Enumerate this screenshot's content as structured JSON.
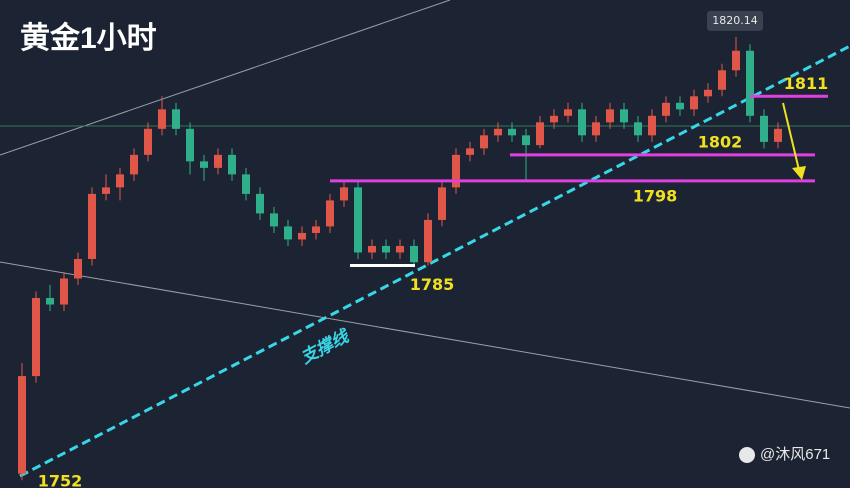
{
  "chart_data": {
    "type": "candlestick",
    "title": "黄金1小时",
    "ylim": [
      1750.8,
      1825.8
    ],
    "up_color": "#e0574a",
    "down_color": "#2fb08a",
    "candles": [
      [
        1753,
        1770,
        1752,
        1768
      ],
      [
        1768,
        1781,
        1767,
        1780
      ],
      [
        1780,
        1782,
        1778,
        1779
      ],
      [
        1779,
        1784,
        1778,
        1783
      ],
      [
        1783,
        1787,
        1782,
        1786
      ],
      [
        1786,
        1797,
        1785,
        1796
      ],
      [
        1796,
        1799,
        1795,
        1797
      ],
      [
        1797,
        1800,
        1795,
        1799
      ],
      [
        1799,
        1803,
        1798,
        1802
      ],
      [
        1802,
        1807,
        1801,
        1806
      ],
      [
        1806,
        1811,
        1805,
        1809
      ],
      [
        1809,
        1810,
        1805,
        1806
      ],
      [
        1806,
        1807,
        1799,
        1801
      ],
      [
        1801,
        1802,
        1798,
        1800
      ],
      [
        1800,
        1803,
        1799,
        1802
      ],
      [
        1802,
        1803,
        1798,
        1799
      ],
      [
        1799,
        1800,
        1795,
        1796
      ],
      [
        1796,
        1797,
        1792,
        1793
      ],
      [
        1793,
        1794,
        1790,
        1791
      ],
      [
        1791,
        1792,
        1788,
        1789
      ],
      [
        1789,
        1791,
        1788,
        1790
      ],
      [
        1790,
        1792,
        1789,
        1791
      ],
      [
        1791,
        1796,
        1790,
        1795
      ],
      [
        1795,
        1798,
        1794,
        1797
      ],
      [
        1797,
        1798,
        1786,
        1787
      ],
      [
        1787,
        1789,
        1786,
        1788
      ],
      [
        1788,
        1789,
        1786,
        1787
      ],
      [
        1787,
        1789,
        1786,
        1788
      ],
      [
        1788,
        1789,
        1785,
        1785.5
      ],
      [
        1785.5,
        1793,
        1785,
        1792
      ],
      [
        1792,
        1798,
        1791,
        1797
      ],
      [
        1797,
        1803,
        1796,
        1802
      ],
      [
        1802,
        1804,
        1801,
        1803
      ],
      [
        1803,
        1806,
        1802,
        1805
      ],
      [
        1805,
        1807,
        1804,
        1806
      ],
      [
        1806,
        1807,
        1804,
        1805
      ],
      [
        1805,
        1806,
        1798,
        1803.5
      ],
      [
        1803.5,
        1808,
        1803,
        1807
      ],
      [
        1807,
        1809,
        1806,
        1808
      ],
      [
        1808,
        1810,
        1807,
        1809
      ],
      [
        1809,
        1810,
        1804,
        1805
      ],
      [
        1805,
        1808,
        1804,
        1807
      ],
      [
        1807,
        1810,
        1806,
        1809
      ],
      [
        1809,
        1810,
        1806,
        1807
      ],
      [
        1807,
        1808,
        1804,
        1805
      ],
      [
        1805,
        1809,
        1804,
        1808
      ],
      [
        1808,
        1811,
        1807,
        1810
      ],
      [
        1810,
        1811,
        1808,
        1809
      ],
      [
        1809,
        1812,
        1808,
        1811
      ],
      [
        1811,
        1813,
        1810,
        1812
      ],
      [
        1812,
        1816,
        1811,
        1815
      ],
      [
        1815,
        1820.14,
        1814,
        1818
      ],
      [
        1818,
        1819,
        1807,
        1808
      ],
      [
        1808,
        1809,
        1803,
        1804
      ],
      [
        1804,
        1807,
        1803,
        1806
      ]
    ],
    "levels": [
      {
        "value": 1811,
        "color": "#e040e0"
      },
      {
        "value": 1802,
        "color": "#e040e0"
      },
      {
        "value": 1798,
        "color": "#e040e0"
      },
      {
        "value": 1785,
        "color": "#ffffff"
      }
    ],
    "low_label": 1752,
    "high_tag": 1820.14,
    "support_label": "支撑线",
    "watermark": "@沐风671"
  }
}
